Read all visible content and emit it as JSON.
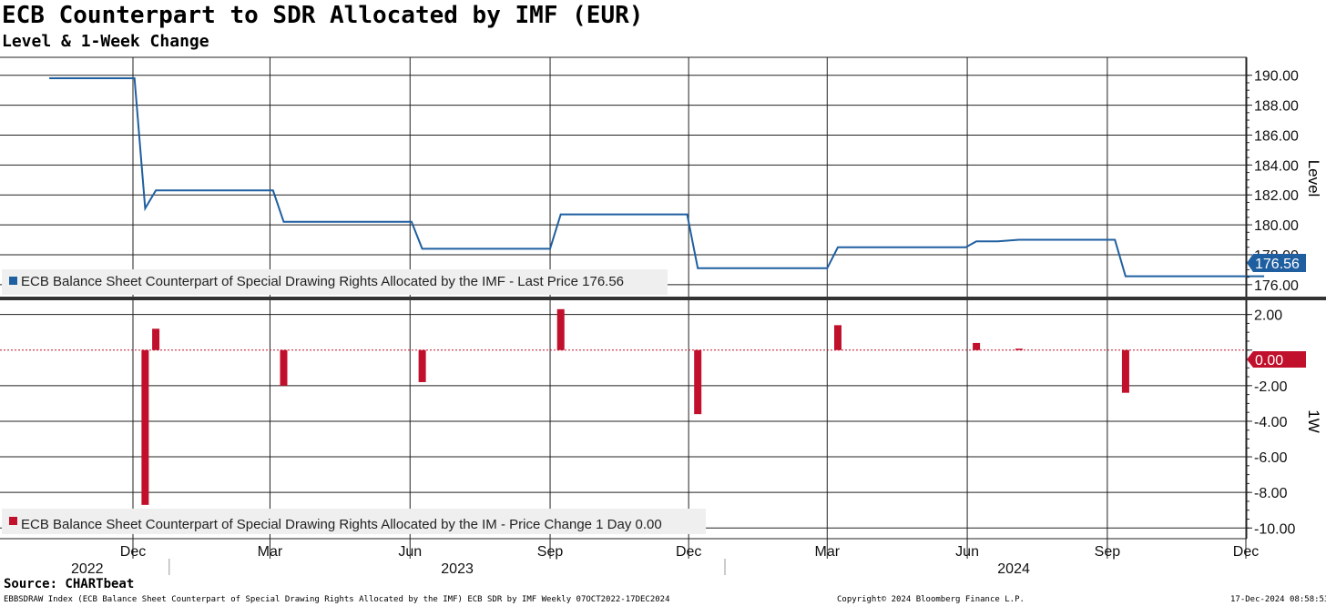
{
  "header": {
    "title": "ECB Counterpart to SDR Allocated by IMF (EUR)",
    "subtitle": "Level & 1-Week Change"
  },
  "footer": {
    "source": "Source: CHARTbeat",
    "description": "EBBSDRAW Index (ECB Balance Sheet Counterpart of Special Drawing Rights Allocated by the IMF) ECB SDR by IMF  Weekly 07OCT2022-17DEC2024",
    "copyright": "Copyright© 2024 Bloomberg Finance L.P.",
    "timestamp": "17-Dec-2024 08:58:53"
  },
  "colors": {
    "level_line": "#1f5fa0",
    "change_bar": "#c0102c",
    "zero_line": "#e8a0a0"
  },
  "chart_data": [
    {
      "type": "line",
      "panel": "top",
      "axis_label": "Level",
      "legend": "ECB Balance Sheet Counterpart of Special Drawing Rights Allocated by the IMF - Last Price 176.56",
      "last_value_tag": "176.56",
      "ylim": [
        175.2,
        191.2
      ],
      "yticks": [
        176,
        178,
        180,
        182,
        184,
        186,
        188,
        190
      ],
      "ytick_labels": [
        "176.00",
        "178.00",
        "180.00",
        "182.00",
        "184.00",
        "186.00",
        "188.00",
        "190.00"
      ],
      "grid": true,
      "series": [
        {
          "x": [
            "2022-10-07",
            "2022-12-02",
            "2022-12-09",
            "2022-12-16",
            "2023-03-03",
            "2023-03-10",
            "2023-06-02",
            "2023-06-09",
            "2023-09-01",
            "2023-09-08",
            "2023-11-30",
            "2023-12-07",
            "2024-03-01",
            "2024-03-08",
            "2024-05-31",
            "2024-06-07",
            "2024-06-21",
            "2024-07-05",
            "2024-09-06",
            "2024-09-13",
            "2024-12-13"
          ],
          "values": [
            189.8,
            189.8,
            181.1,
            182.3,
            182.3,
            180.2,
            180.2,
            178.4,
            178.4,
            180.7,
            180.7,
            177.1,
            177.1,
            178.5,
            178.5,
            178.9,
            178.9,
            179.0,
            179.0,
            176.56,
            176.56
          ]
        }
      ]
    },
    {
      "type": "bar",
      "panel": "bottom",
      "axis_label": "1W",
      "legend": "ECB Balance Sheet Counterpart of Special Drawing Rights Allocated by the IM - Price Change 1 Day 0.00",
      "last_value_tag": "0.00",
      "ylim": [
        -10.6,
        2.8
      ],
      "yticks": [
        -10,
        -8,
        -6,
        -4,
        -2,
        0,
        2
      ],
      "ytick_labels": [
        "-10.00",
        "-8.00",
        "-6.00",
        "-4.00",
        "-2.00",
        "",
        "2.00"
      ],
      "grid": true,
      "series": [
        {
          "x": [
            "2022-12-09",
            "2022-12-16",
            "2023-03-10",
            "2023-06-09",
            "2023-09-08",
            "2023-12-07",
            "2024-03-08",
            "2024-06-07",
            "2024-07-05",
            "2024-09-13"
          ],
          "values": [
            -8.7,
            1.2,
            -2.0,
            -1.8,
            2.3,
            -3.6,
            1.4,
            0.4,
            0.08,
            -2.4
          ]
        }
      ]
    }
  ],
  "x_axis": {
    "start": "2022-10-07",
    "end": "2024-12-17",
    "month_labels": [
      {
        "date": "2022-12-01",
        "label": "Dec"
      },
      {
        "date": "2023-03-01",
        "label": "Mar"
      },
      {
        "date": "2023-06-01",
        "label": "Jun"
      },
      {
        "date": "2023-09-01",
        "label": "Sep"
      },
      {
        "date": "2023-12-01",
        "label": "Dec"
      },
      {
        "date": "2024-03-01",
        "label": "Mar"
      },
      {
        "date": "2024-06-01",
        "label": "Jun"
      },
      {
        "date": "2024-09-01",
        "label": "Sep"
      },
      {
        "date": "2024-12-01",
        "label": "Dec"
      }
    ],
    "year_labels": [
      "2022",
      "2023",
      "2024"
    ]
  }
}
